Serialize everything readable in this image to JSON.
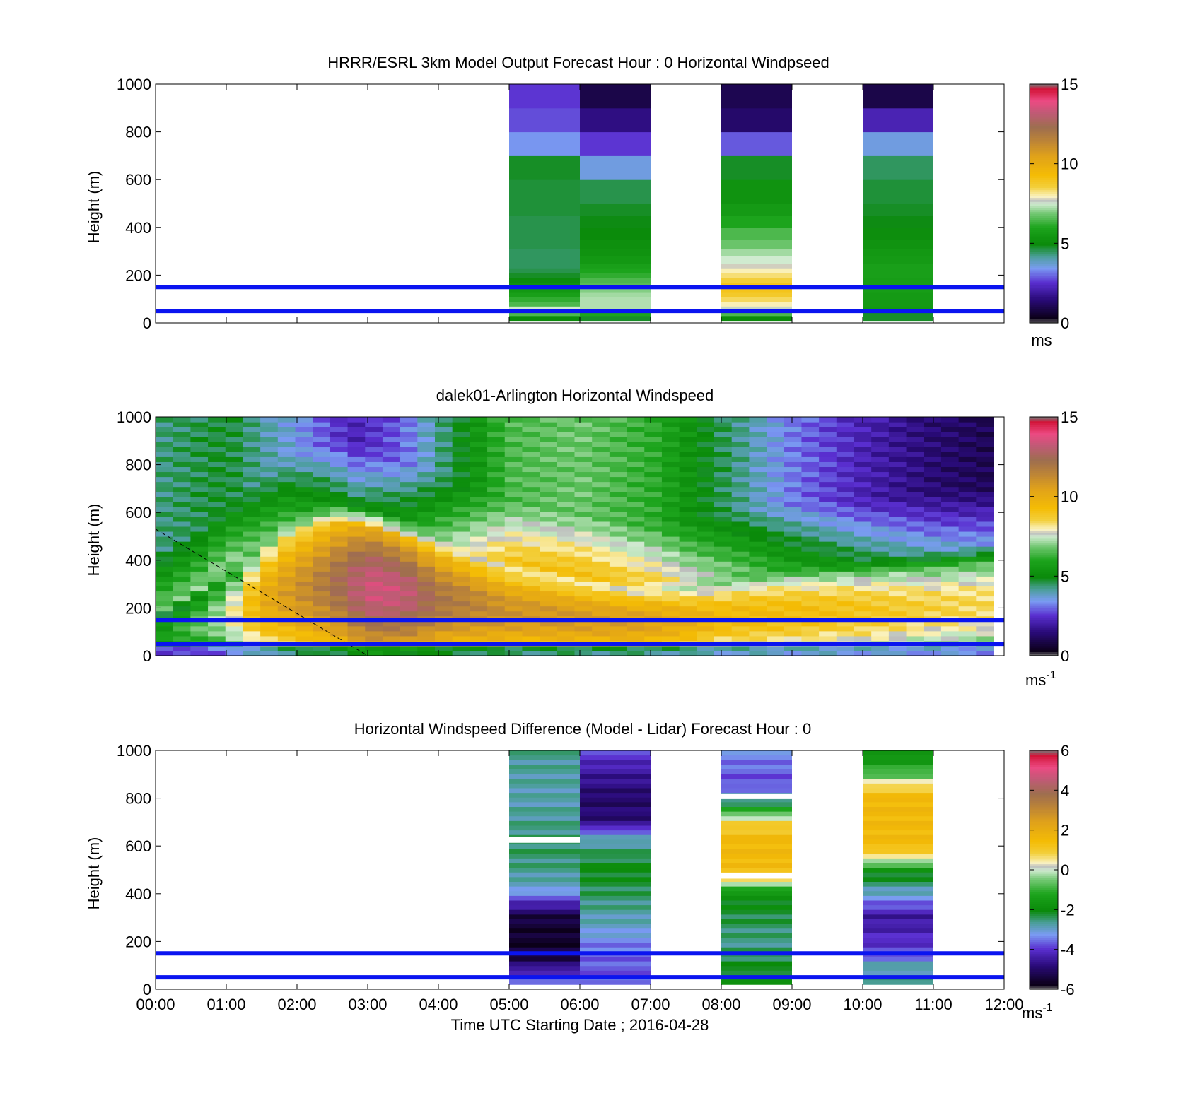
{
  "chart_data": [
    {
      "type": "heatmap",
      "title": "HRRR/ESRL 3km Model Output   Forecast Hour : 0 Horizontal Windpseed",
      "ylabel": "Height (m)",
      "xlabel": "",
      "ylim": [
        0,
        1000
      ],
      "xlim_hours": [
        0,
        12
      ],
      "y_ticks": [
        "0",
        "200",
        "400",
        "600",
        "800",
        "1000"
      ],
      "x_ticks": [],
      "colorbar": {
        "min": 0,
        "max": 15,
        "ticks": [
          "0",
          "5",
          "10",
          "15"
        ],
        "unit": "ms"
      },
      "reference_lines_m": [
        50,
        150
      ],
      "height_bins_m": [
        30,
        50,
        70,
        90,
        110,
        130,
        150,
        170,
        190,
        210,
        230,
        250,
        280,
        310,
        350,
        400,
        450,
        500,
        600,
        700,
        800,
        900,
        1000
      ],
      "columns": [
        {
          "time_hours": [
            5,
            6
          ],
          "speeds": [
            5.0,
            6.5,
            7.5,
            6.5,
            6.2,
            5.8,
            5.5,
            5.2,
            5.0,
            4.8,
            4.6,
            4.5,
            4.5,
            4.5,
            4.6,
            4.6,
            4.6,
            4.7,
            4.7,
            4.8,
            3.4,
            2.8,
            2.6
          ]
        },
        {
          "time_hours": [
            6,
            7
          ],
          "speeds": [
            4.8,
            6.0,
            7.3,
            7.3,
            7.3,
            7.2,
            7.0,
            6.6,
            6.5,
            6.2,
            6.0,
            5.8,
            5.5,
            5.3,
            5.2,
            5.0,
            4.9,
            4.8,
            4.6,
            3.6,
            2.6,
            1.6,
            0.9
          ]
        },
        {
          "time_hours": [
            8,
            9
          ],
          "speeds": [
            5.0,
            6.5,
            7.6,
            8.0,
            8.4,
            8.8,
            9.0,
            9.0,
            8.6,
            8.3,
            8.0,
            7.8,
            7.5,
            7.2,
            6.8,
            6.5,
            6.0,
            5.6,
            5.3,
            4.8,
            2.9,
            1.3,
            1.0
          ]
        },
        {
          "time_hours": [
            10,
            11
          ],
          "speeds": [
            4.8,
            4.8,
            5.5,
            5.6,
            5.6,
            5.6,
            5.7,
            5.7,
            5.7,
            5.8,
            5.8,
            5.8,
            5.6,
            5.5,
            5.3,
            5.1,
            4.9,
            4.8,
            4.7,
            4.5,
            3.6,
            2.2,
            0.9
          ]
        }
      ]
    },
    {
      "type": "heatmap",
      "title": "dalek01-Arlington  Horizontal Windspeed",
      "ylabel": "Height (m)",
      "xlabel": "",
      "ylim": [
        0,
        1000
      ],
      "xlim_hours": [
        0,
        12
      ],
      "y_ticks": [
        "0",
        "200",
        "400",
        "600",
        "800",
        "1000"
      ],
      "x_ticks": [],
      "colorbar": {
        "min": 0,
        "max": 15,
        "ticks": [
          "0",
          "5",
          "10",
          "15"
        ],
        "unit": "ms",
        "unit_exponent": "-1"
      },
      "reference_lines_m": [
        50,
        150
      ],
      "time_range_hours": [
        0,
        11.85
      ],
      "time_bins": 48,
      "height_range_m": [
        0,
        1000
      ],
      "height_bins": 48,
      "model": {
        "jet_core_speed_by_time": [
          [
            0,
            5.5
          ],
          [
            1.0,
            7.5
          ],
          [
            1.5,
            10.0
          ],
          [
            2.5,
            12.0
          ],
          [
            3.0,
            13.5
          ],
          [
            3.5,
            13.3
          ],
          [
            4.0,
            12.0
          ],
          [
            5.0,
            11.0
          ],
          [
            6.0,
            10.8
          ],
          [
            7.0,
            10.5
          ],
          [
            8.0,
            9.5
          ],
          [
            9.0,
            9.3
          ],
          [
            10.0,
            9.0
          ],
          [
            11.0,
            8.6
          ],
          [
            11.85,
            8.4
          ]
        ],
        "jet_top_m_by_time": [
          [
            0,
            180
          ],
          [
            0.6,
            280
          ],
          [
            1.2,
            420
          ],
          [
            1.8,
            580
          ],
          [
            2.5,
            660
          ],
          [
            3.0,
            630
          ],
          [
            3.5,
            570
          ],
          [
            4.2,
            490
          ],
          [
            5.0,
            400
          ],
          [
            6.0,
            340
          ],
          [
            6.8,
            310
          ],
          [
            7.5,
            320
          ],
          [
            8.2,
            360
          ],
          [
            9.0,
            390
          ],
          [
            10.0,
            410
          ],
          [
            11.0,
            440
          ],
          [
            11.85,
            470
          ]
        ],
        "aloft_speed_by_time": [
          [
            0,
            4.3
          ],
          [
            1.0,
            4.8
          ],
          [
            2.0,
            3.5
          ],
          [
            2.8,
            2.2
          ],
          [
            3.5,
            3.0
          ],
          [
            4.0,
            4.2
          ],
          [
            5.0,
            6.5
          ],
          [
            6.0,
            6.8
          ],
          [
            7.0,
            6.2
          ],
          [
            8.0,
            4.6
          ],
          [
            9.0,
            3.2
          ],
          [
            10.0,
            2.2
          ],
          [
            11.0,
            1.4
          ],
          [
            11.85,
            1.0
          ]
        ]
      },
      "dashed_line": {
        "from": {
          "time_hours": 0,
          "height_m": 530
        },
        "to": {
          "time_hours": 3.0,
          "height_m": 0
        }
      }
    },
    {
      "type": "heatmap",
      "title": "Horizontal Windspeed Difference (Model - Lidar) Forecast Hour : 0",
      "ylabel": "Height (m)",
      "xlabel": "Time UTC  Starting Date ; 2016-04-28",
      "ylim": [
        0,
        1000
      ],
      "xlim_hours": [
        0,
        12
      ],
      "y_ticks": [
        "0",
        "200",
        "400",
        "600",
        "800",
        "1000"
      ],
      "x_ticks": [
        "00:00",
        "01:00",
        "02:00",
        "03:00",
        "04:00",
        "05:00",
        "06:00",
        "07:00",
        "08:00",
        "09:00",
        "10:00",
        "11:00",
        "12:00"
      ],
      "colorbar": {
        "min": -6,
        "max": 6,
        "ticks": [
          "-6",
          "-4",
          "-2",
          "0",
          "2",
          "4",
          "6"
        ],
        "unit": "ms",
        "unit_exponent": "-1"
      },
      "reference_lines_m": [
        50,
        150
      ],
      "columns": [
        {
          "time_hours": [
            5,
            6
          ],
          "profile_m_value": [
            [
              20,
              -3.5
            ],
            [
              60,
              -3.8
            ],
            [
              120,
              -5.2
            ],
            [
              200,
              -5.6
            ],
            [
              300,
              -5.4
            ],
            [
              360,
              -4.2
            ],
            [
              420,
              -3.0
            ],
            [
              500,
              -2.6
            ],
            [
              600,
              -2.4
            ],
            [
              640,
              -2.5
            ],
            [
              800,
              -2.8
            ],
            [
              1000,
              -2.6
            ]
          ]
        },
        {
          "time_hours": [
            6,
            7
          ],
          "profile_m_value": [
            [
              20,
              -3.6
            ],
            [
              100,
              -3.7
            ],
            [
              200,
              -3.4
            ],
            [
              250,
              -3.0
            ],
            [
              400,
              -2.4
            ],
            [
              500,
              -2.0
            ],
            [
              600,
              -2.6
            ],
            [
              650,
              -3.2
            ],
            [
              700,
              -4.8
            ],
            [
              800,
              -5.0
            ],
            [
              900,
              -4.5
            ],
            [
              1000,
              -3.8
            ]
          ]
        },
        {
          "time_hours": [
            8,
            9
          ],
          "profile_m_value": [
            [
              20,
              -1.8
            ],
            [
              100,
              -2.2
            ],
            [
              200,
              -2.6
            ],
            [
              300,
              -2.3
            ],
            [
              400,
              -1.8
            ],
            [
              460,
              0.5
            ],
            [
              520,
              1.5
            ],
            [
              620,
              1.6
            ],
            [
              700,
              0.8
            ],
            [
              780,
              -2.4
            ],
            [
              860,
              -3.8
            ],
            [
              1000,
              -3.3
            ]
          ]
        },
        {
          "time_hours": [
            10,
            11
          ],
          "profile_m_value": [
            [
              20,
              -2.6
            ],
            [
              100,
              -2.8
            ],
            [
              150,
              -3.8
            ],
            [
              300,
              -4.5
            ],
            [
              400,
              -3.0
            ],
            [
              500,
              -1.8
            ],
            [
              540,
              0.0
            ],
            [
              600,
              1.5
            ],
            [
              800,
              1.6
            ],
            [
              860,
              0.6
            ],
            [
              900,
              -0.8
            ],
            [
              1000,
              -2.0
            ]
          ]
        }
      ],
      "white_gap_bars": [
        {
          "time_hours": [
            5,
            6
          ],
          "height_m": 625
        },
        {
          "time_hours": [
            8,
            9
          ],
          "height_m": 475
        },
        {
          "time_hours": [
            8,
            9
          ],
          "height_m": 808
        }
      ]
    }
  ]
}
